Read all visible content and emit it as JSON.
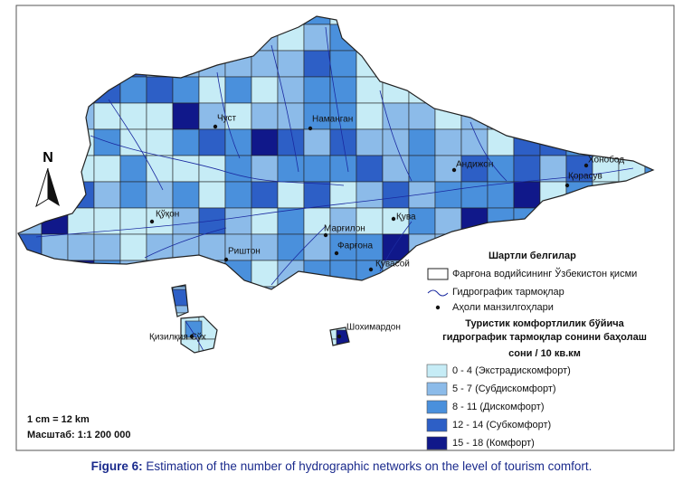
{
  "map": {
    "north_label": "N",
    "places": [
      "Чуст",
      "Наманган",
      "Андижон",
      "Хонобод",
      "Қорасув",
      "Қўқон",
      "Қува",
      "Марғилон",
      "Фарғона",
      "Риштон",
      "Қувасой",
      "Қизилқия Сўх",
      "Шохимардон"
    ],
    "legend": {
      "title": "Шартли белгилар",
      "items": [
        "Фарғона водийсининг Ўзбекистон қисми",
        "Гидрографик тармоқлар",
        "Аҳоли манзилгоҳлари"
      ],
      "classes_title": [
        "Туристик комфортлилик бўйича",
        "гидрографик тармоқлар сонини баҳолаш"
      ],
      "unit": "сони / 10 кв.км",
      "classes": [
        {
          "label": "0 - 4 (Экстрадискомфорт)",
          "color": "#c6ecf6"
        },
        {
          "label": "5 - 7 (Субдискомфорт)",
          "color": "#8cbbe9"
        },
        {
          "label": "8 - 11 (Дискомфорт)",
          "color": "#4a90dc"
        },
        {
          "label": "12 - 14 (Субкомфорт)",
          "color": "#2d5fc6"
        },
        {
          "label": "15 - 18 (Комфорт)",
          "color": "#10188a"
        }
      ]
    },
    "scale": {
      "ratio_text": "1 cm = 12 km",
      "scale_text": "Масштаб:  1:1 200 000"
    }
  },
  "caption": {
    "label": "Figure 6:",
    "text": " Estimation of the number of hydrographic networks on the level of tourism comfort."
  }
}
